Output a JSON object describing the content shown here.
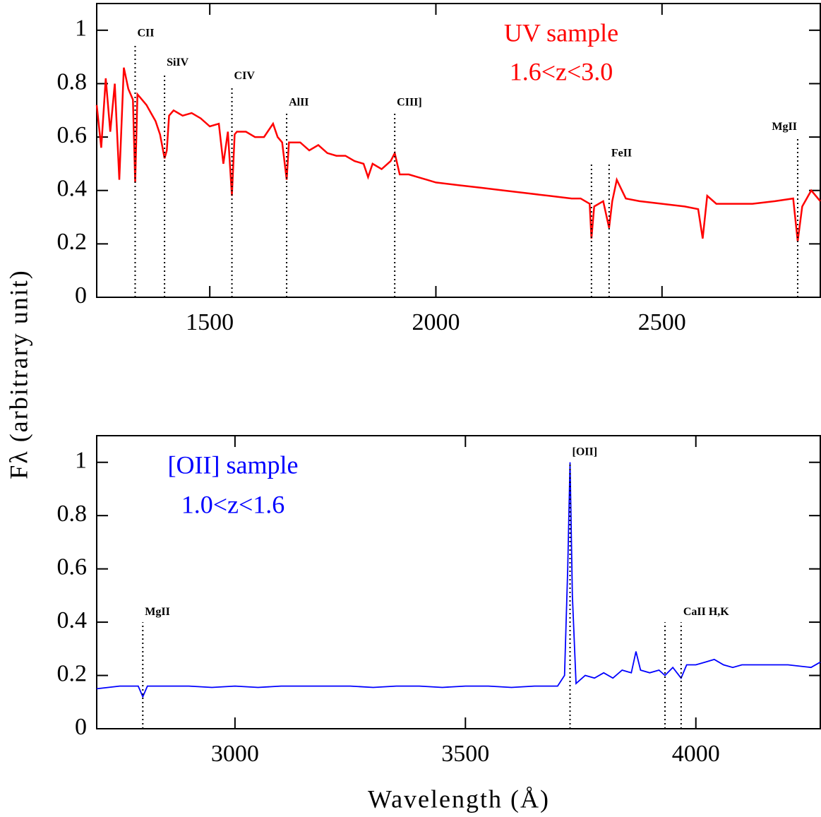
{
  "chart_data": [
    {
      "type": "line",
      "xlim": [
        1250,
        2850
      ],
      "ylim": [
        0,
        1.1
      ],
      "xticks": [
        1500,
        2000,
        2500
      ],
      "yticks": [
        0,
        0.2,
        0.4,
        0.6,
        0.8,
        1
      ],
      "ylabel": "Fλ (arbitrary unit)",
      "notes": [
        "UV sample",
        "1.6<z<3.0"
      ],
      "series": [
        {
          "color": "#ff0000",
          "x": [
            1250,
            1260,
            1270,
            1280,
            1290,
            1300,
            1310,
            1320,
            1330,
            1335,
            1340,
            1350,
            1360,
            1370,
            1380,
            1390,
            1400,
            1405,
            1410,
            1420,
            1440,
            1460,
            1480,
            1500,
            1520,
            1530,
            1540,
            1549,
            1555,
            1560,
            1580,
            1600,
            1620,
            1640,
            1650,
            1660,
            1670,
            1675,
            1680,
            1700,
            1720,
            1740,
            1760,
            1780,
            1800,
            1820,
            1840,
            1850,
            1860,
            1880,
            1900,
            1909,
            1920,
            1940,
            1960,
            1980,
            2000,
            2050,
            2100,
            2150,
            2200,
            2250,
            2300,
            2320,
            2340,
            2344,
            2350,
            2370,
            2383,
            2390,
            2400,
            2420,
            2450,
            2500,
            2550,
            2580,
            2590,
            2600,
            2620,
            2650,
            2700,
            2750,
            2790,
            2800,
            2810,
            2830,
            2850
          ],
          "values": [
            0.72,
            0.56,
            0.82,
            0.62,
            0.8,
            0.44,
            0.86,
            0.78,
            0.74,
            0.43,
            0.76,
            0.74,
            0.72,
            0.69,
            0.66,
            0.61,
            0.52,
            0.55,
            0.68,
            0.7,
            0.68,
            0.69,
            0.67,
            0.64,
            0.65,
            0.5,
            0.62,
            0.38,
            0.61,
            0.62,
            0.62,
            0.6,
            0.6,
            0.65,
            0.6,
            0.58,
            0.44,
            0.58,
            0.58,
            0.58,
            0.55,
            0.57,
            0.54,
            0.53,
            0.53,
            0.51,
            0.5,
            0.45,
            0.5,
            0.48,
            0.51,
            0.54,
            0.46,
            0.46,
            0.45,
            0.44,
            0.43,
            0.42,
            0.41,
            0.4,
            0.39,
            0.38,
            0.37,
            0.37,
            0.35,
            0.22,
            0.34,
            0.36,
            0.26,
            0.36,
            0.44,
            0.37,
            0.36,
            0.35,
            0.34,
            0.33,
            0.22,
            0.38,
            0.35,
            0.35,
            0.35,
            0.36,
            0.37,
            0.21,
            0.34,
            0.4,
            0.36
          ]
        }
      ],
      "annotations": [
        {
          "label": "CII",
          "x": [
            1335
          ],
          "top": [
            0.95
          ]
        },
        {
          "label": "SiIV",
          "x": [
            1400
          ],
          "top": [
            0.84
          ]
        },
        {
          "label": "CIV",
          "x": [
            1549
          ],
          "top": [
            0.79
          ]
        },
        {
          "label": "AlII",
          "x": [
            1670
          ],
          "top": [
            0.69
          ]
        },
        {
          "label": "CIII]",
          "x": [
            1909
          ],
          "top": [
            0.69
          ]
        },
        {
          "label": "FeII",
          "x": [
            2344,
            2383
          ],
          "top": [
            0.5,
            0.5
          ]
        },
        {
          "label": "MgII",
          "x": [
            2800
          ],
          "top": [
            0.6
          ]
        }
      ]
    },
    {
      "type": "line",
      "xlim": [
        2700,
        4270
      ],
      "ylim": [
        0,
        1.1
      ],
      "xticks": [
        3000,
        3500,
        4000
      ],
      "yticks": [
        0,
        0.2,
        0.4,
        0.6,
        0.8,
        1
      ],
      "xlabel": "Wavelength (Å)",
      "notes": [
        "[OII] sample",
        "1.0<z<1.6"
      ],
      "series": [
        {
          "color": "#0000ff",
          "x": [
            2700,
            2750,
            2790,
            2800,
            2810,
            2850,
            2900,
            2950,
            3000,
            3050,
            3100,
            3150,
            3200,
            3250,
            3300,
            3350,
            3400,
            3450,
            3500,
            3550,
            3600,
            3650,
            3700,
            3715,
            3722,
            3727,
            3732,
            3740,
            3760,
            3780,
            3800,
            3820,
            3840,
            3860,
            3870,
            3880,
            3900,
            3920,
            3933,
            3950,
            3968,
            3980,
            4000,
            4020,
            4040,
            4060,
            4080,
            4100,
            4150,
            4200,
            4250,
            4270
          ],
          "values": [
            0.15,
            0.16,
            0.16,
            0.12,
            0.16,
            0.16,
            0.16,
            0.155,
            0.16,
            0.155,
            0.16,
            0.16,
            0.16,
            0.16,
            0.155,
            0.16,
            0.16,
            0.155,
            0.16,
            0.16,
            0.155,
            0.16,
            0.16,
            0.2,
            0.6,
            1.0,
            0.5,
            0.17,
            0.2,
            0.19,
            0.21,
            0.19,
            0.22,
            0.21,
            0.29,
            0.22,
            0.21,
            0.22,
            0.2,
            0.23,
            0.19,
            0.24,
            0.24,
            0.25,
            0.26,
            0.24,
            0.23,
            0.24,
            0.24,
            0.24,
            0.23,
            0.25
          ]
        }
      ],
      "annotations": [
        {
          "label": "MgII",
          "x": [
            2800
          ],
          "top": [
            0.4
          ]
        },
        {
          "label": "[OII]",
          "x": [
            3727
          ],
          "top": [
            1.0
          ]
        },
        {
          "label": "CaII H,K",
          "x": [
            3933,
            3968
          ],
          "top": [
            0.4,
            0.4
          ]
        }
      ]
    }
  ]
}
